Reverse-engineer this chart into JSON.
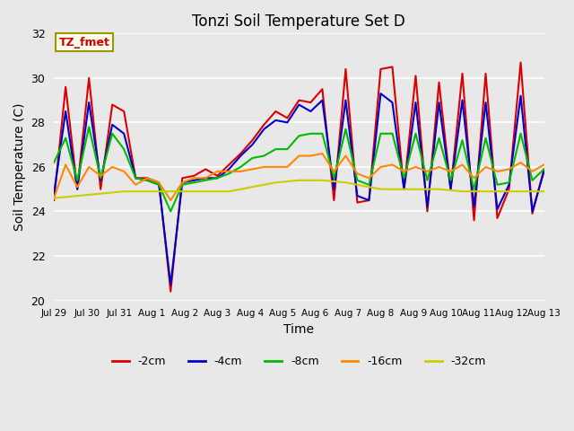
{
  "title": "Tonzi Soil Temperature Set D",
  "xlabel": "Time",
  "ylabel": "Soil Temperature (C)",
  "ylim": [
    20,
    32
  ],
  "annotation_text": "TZ_fmet",
  "annotation_color": "#cc0000",
  "annotation_bg": "#ffffee",
  "annotation_border": "#999900",
  "plot_bg": "#e8e8e8",
  "grid_color": "white",
  "yticks": [
    20,
    22,
    24,
    26,
    28,
    30,
    32
  ],
  "xtick_labels": [
    "Jul 29",
    "Jul 30",
    "Jul 31",
    "Aug 1",
    "Aug 2",
    "Aug 3",
    "Aug 4",
    "Aug 5",
    "Aug 6",
    "Aug 7",
    "Aug 8",
    "Aug 9",
    "Aug 10",
    "Aug 11",
    "Aug 12",
    "Aug 13"
  ],
  "legend_labels": [
    "-2cm",
    "-4cm",
    "-8cm",
    "-16cm",
    "-32cm"
  ],
  "legend_colors": [
    "#dd0000",
    "#0000cc",
    "#00bb00",
    "#ff8800",
    "#cccc00"
  ],
  "s2cm": [
    24.5,
    29.6,
    25.0,
    30.0,
    25.0,
    28.8,
    28.5,
    25.5,
    25.5,
    25.3,
    20.4,
    25.5,
    25.6,
    25.9,
    25.6,
    26.1,
    26.6,
    27.2,
    27.9,
    28.5,
    28.2,
    29.0,
    28.9,
    29.5,
    24.5,
    30.4,
    24.4,
    24.5,
    30.4,
    30.5,
    25.0,
    30.1,
    24.0,
    29.8,
    25.0,
    30.2,
    23.6,
    30.2,
    23.7,
    25.0,
    30.7,
    23.9,
    25.9
  ],
  "s4cm": [
    24.8,
    28.5,
    25.0,
    28.9,
    25.4,
    27.9,
    27.5,
    25.5,
    25.4,
    25.2,
    20.7,
    25.3,
    25.4,
    25.5,
    25.5,
    25.9,
    26.5,
    27.0,
    27.7,
    28.1,
    28.0,
    28.8,
    28.5,
    29.0,
    25.0,
    29.0,
    24.7,
    24.5,
    29.3,
    28.9,
    25.0,
    28.9,
    24.2,
    28.9,
    25.0,
    29.0,
    24.2,
    28.9,
    24.1,
    25.2,
    29.2,
    24.0,
    25.8
  ],
  "s8cm": [
    26.2,
    27.3,
    25.4,
    27.8,
    25.5,
    27.5,
    26.8,
    25.5,
    25.4,
    25.2,
    24.0,
    25.2,
    25.3,
    25.4,
    25.5,
    25.7,
    26.0,
    26.4,
    26.5,
    26.8,
    26.8,
    27.4,
    27.5,
    27.5,
    25.5,
    27.7,
    25.4,
    25.2,
    27.5,
    27.5,
    25.5,
    27.5,
    25.4,
    27.3,
    25.4,
    27.2,
    25.0,
    27.3,
    25.2,
    25.3,
    27.5,
    25.4,
    25.9
  ],
  "s16cm": [
    24.6,
    26.1,
    25.1,
    26.0,
    25.6,
    26.0,
    25.8,
    25.2,
    25.5,
    25.3,
    24.5,
    25.3,
    25.5,
    25.5,
    25.8,
    25.8,
    25.8,
    25.9,
    26.0,
    26.0,
    26.0,
    26.5,
    26.5,
    26.6,
    25.8,
    26.5,
    25.7,
    25.5,
    26.0,
    26.1,
    25.8,
    26.0,
    25.8,
    26.0,
    25.8,
    26.1,
    25.5,
    26.0,
    25.8,
    25.9,
    26.2,
    25.8,
    26.1
  ],
  "s32cm": [
    24.6,
    24.65,
    24.7,
    24.75,
    24.8,
    24.85,
    24.9,
    24.9,
    24.9,
    24.9,
    24.9,
    24.9,
    24.9,
    24.9,
    24.9,
    24.9,
    25.0,
    25.1,
    25.2,
    25.3,
    25.35,
    25.4,
    25.4,
    25.4,
    25.35,
    25.3,
    25.2,
    25.1,
    25.0,
    25.0,
    25.0,
    25.0,
    25.0,
    25.0,
    24.95,
    24.9,
    24.9,
    24.9,
    24.9,
    24.9,
    24.9,
    24.9,
    24.9
  ]
}
